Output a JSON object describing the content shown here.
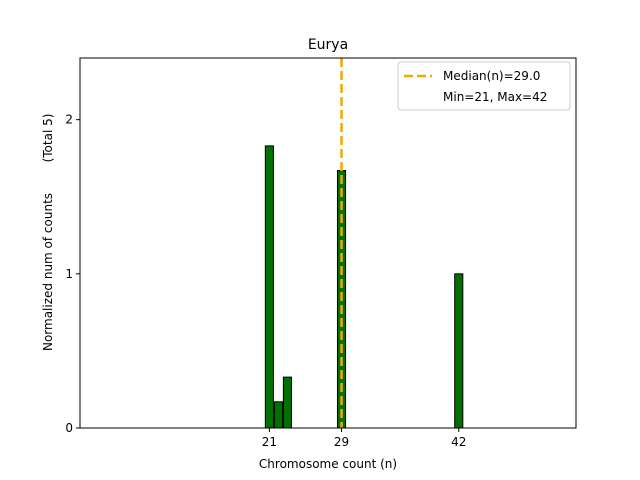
{
  "chart_data": {
    "type": "bar",
    "title": "Eurya",
    "xlabel": "Chromosome count (n)",
    "ylabel": "Normalized num of counts",
    "ylabel_note": "(Total 5)",
    "xlim": [
      0,
      55
    ],
    "ylim": [
      0,
      2.4
    ],
    "xticks": [
      21,
      29,
      42
    ],
    "yticks": [
      0,
      1,
      2
    ],
    "bar_width": 0.9,
    "bar_color": "#007000",
    "bar_edge_color": "#000000",
    "bars": [
      {
        "x": 21,
        "value": 1.83
      },
      {
        "x": 22,
        "value": 0.17
      },
      {
        "x": 23,
        "value": 0.33
      },
      {
        "x": 29,
        "value": 1.67
      },
      {
        "x": 42,
        "value": 1.0
      }
    ],
    "median": 29.0,
    "median_color": "#f2a900",
    "legend": {
      "position": "upper right",
      "entries": [
        "Median(n)=29.0",
        "Min=21, Max=42"
      ]
    },
    "grid": false
  }
}
